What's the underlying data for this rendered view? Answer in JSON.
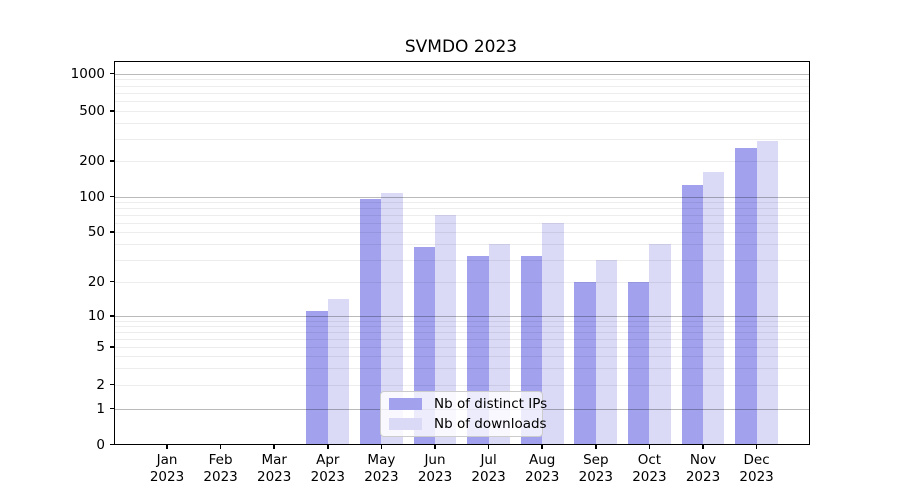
{
  "title": "SVMDO 2023",
  "chart_data": {
    "type": "bar",
    "title": "SVMDO 2023",
    "categories": [
      "Jan 2023",
      "Feb 2023",
      "Mar 2023",
      "Apr 2023",
      "May 2023",
      "Jun 2023",
      "Jul 2023",
      "Aug 2023",
      "Sep 2023",
      "Oct 2023",
      "Nov 2023",
      "Dec 2023"
    ],
    "x_tick_month": [
      "Jan",
      "Feb",
      "Mar",
      "Apr",
      "May",
      "Jun",
      "Jul",
      "Aug",
      "Sep",
      "Oct",
      "Nov",
      "Dec"
    ],
    "x_tick_year": "2023",
    "series": [
      {
        "name": "Nb of distinct IPs",
        "color": "#a1a1ee",
        "values": [
          0,
          0,
          0,
          11,
          95,
          38,
          32,
          32,
          20,
          20,
          125,
          255
        ]
      },
      {
        "name": "Nb of downloads",
        "color": "#dadaf7",
        "values": [
          0,
          0,
          0,
          14,
          107,
          70,
          40,
          60,
          30,
          40,
          160,
          290
        ]
      }
    ],
    "y_axis": {
      "scale": "symlog",
      "tick_labels": [
        0,
        1,
        2,
        5,
        10,
        20,
        50,
        100,
        200,
        500,
        1000
      ],
      "major_gridlines": [
        1,
        10,
        100,
        1000
      ],
      "minor_gridlines": [
        2,
        3,
        4,
        5,
        6,
        7,
        8,
        9,
        20,
        30,
        40,
        50,
        60,
        70,
        80,
        90,
        200,
        300,
        400,
        500,
        600,
        700,
        800,
        900
      ],
      "ylim": [
        0,
        1280
      ]
    },
    "grid": true,
    "legend_position": "lower center",
    "legend_labels": [
      "Nb of distinct IPs",
      "Nb of downloads"
    ]
  }
}
